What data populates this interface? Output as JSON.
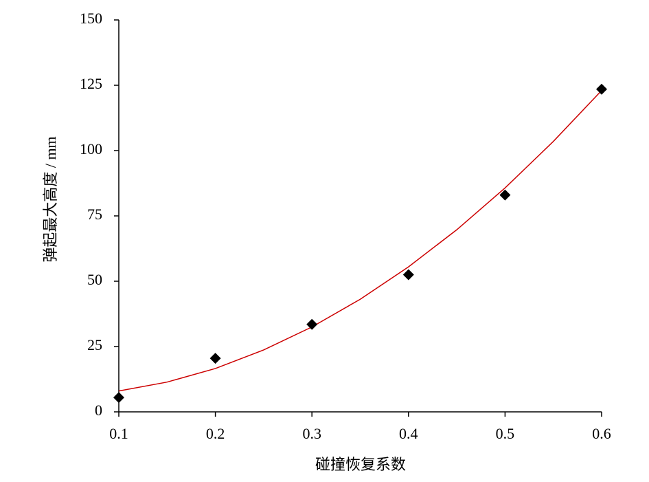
{
  "chart_data": {
    "type": "scatter",
    "x_label": "碰撞恢复系数",
    "y_label": "弹起最大高度 / mm",
    "xlim": [
      0.1,
      0.6
    ],
    "xticks": [
      0.1,
      0.2,
      0.3,
      0.4,
      0.5,
      0.6
    ],
    "ylim": [
      0,
      150
    ],
    "yticks": [
      0,
      25,
      50,
      75,
      100,
      125,
      150
    ],
    "grid": false,
    "series": [
      {
        "type": "scatter",
        "color": "#000000",
        "x": [
          0.1,
          0.2,
          0.3,
          0.4,
          0.5,
          0.6
        ],
        "values": [
          5.5,
          20.5,
          33.5,
          52.5,
          83,
          123.5
        ]
      },
      {
        "type": "line",
        "color": "#cc0000",
        "x": [
          0.1,
          0.15,
          0.2,
          0.25,
          0.3,
          0.35,
          0.4,
          0.45,
          0.5,
          0.55,
          0.6
        ],
        "values": [
          8.0,
          11.4,
          16.6,
          23.7,
          32.5,
          43.1,
          55.5,
          69.7,
          85.7,
          103.5,
          123.0
        ]
      }
    ]
  }
}
